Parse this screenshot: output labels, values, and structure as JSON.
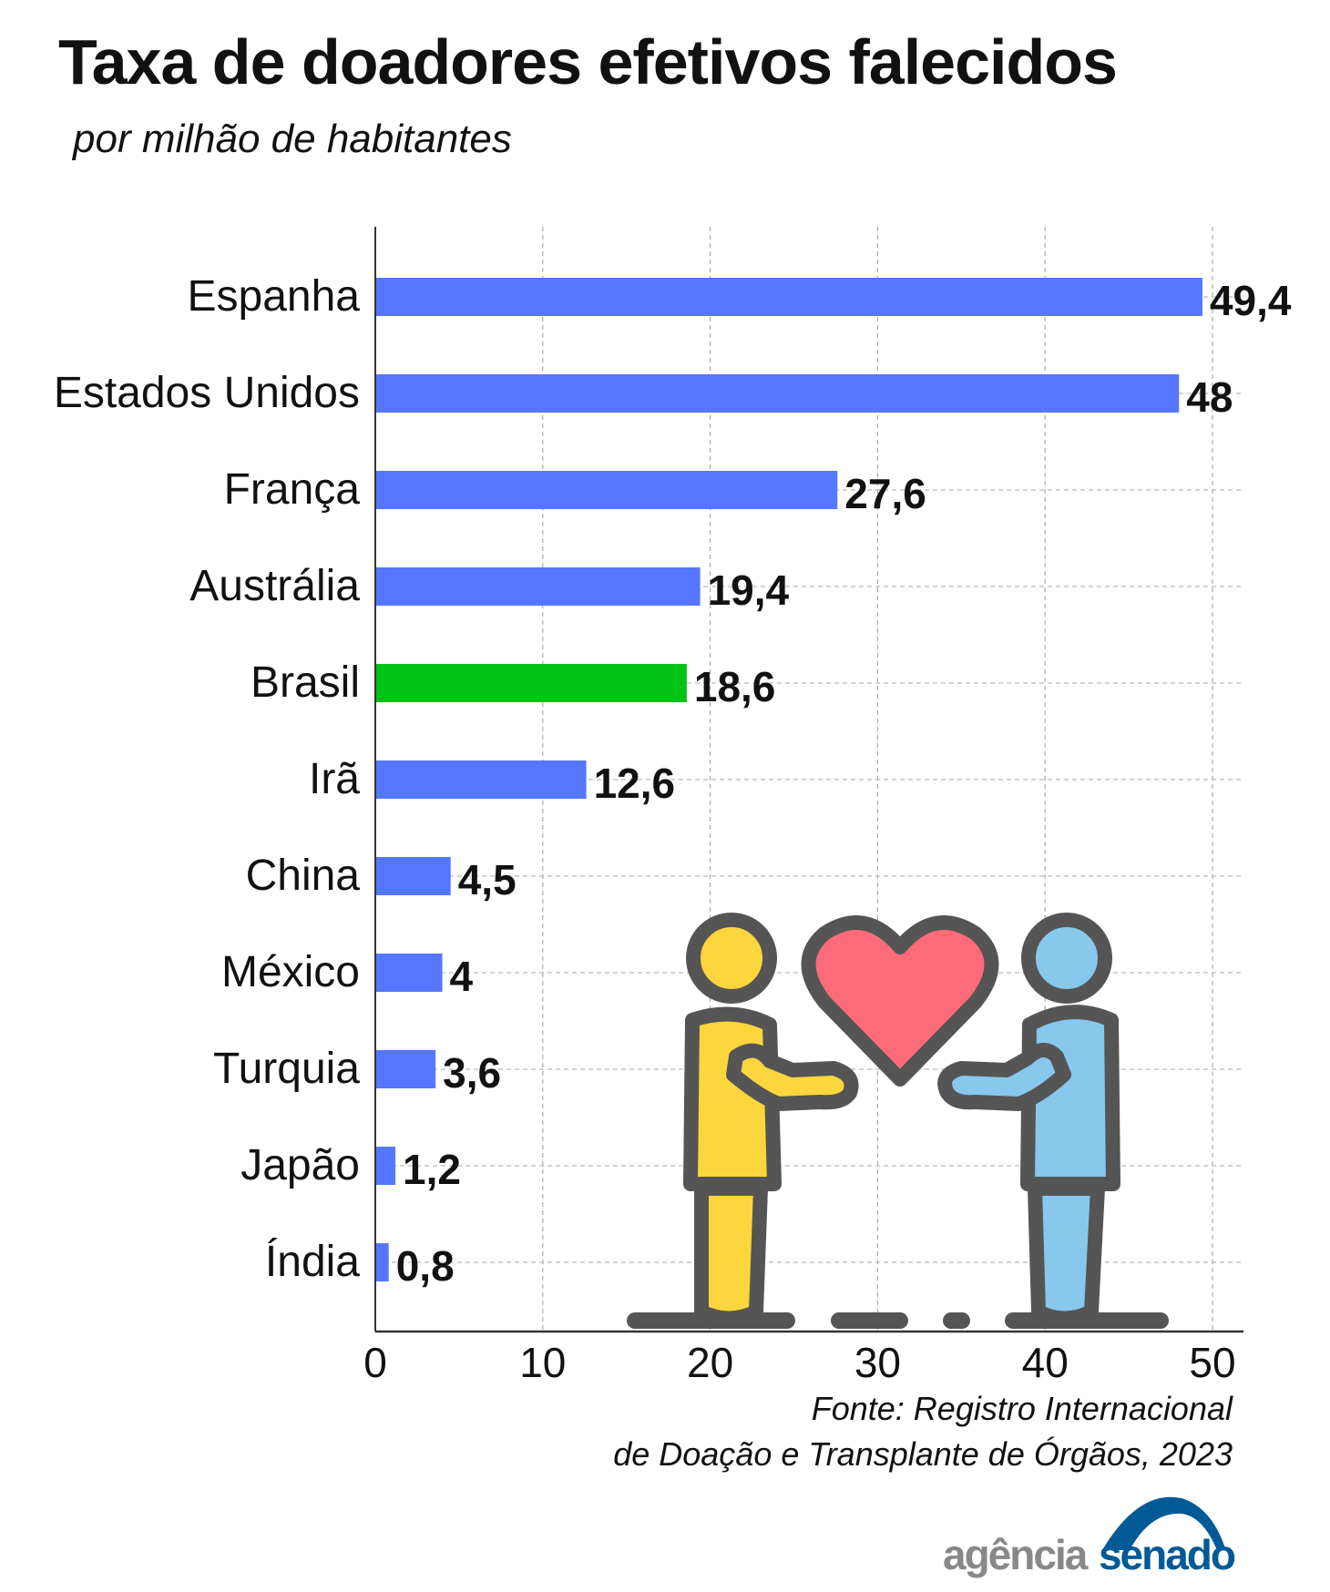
{
  "chart_data": {
    "type": "bar",
    "orientation": "horizontal",
    "title": "Taxa de doadores efetivos falecidos",
    "subtitle": "por milhão de habitantes",
    "categories": [
      "Espanha",
      "Estados Unidos",
      "França",
      "Austrália",
      "Brasil",
      "Irã",
      "China",
      "México",
      "Turquia",
      "Japão",
      "Índia"
    ],
    "values": [
      49.4,
      48,
      27.6,
      19.4,
      18.6,
      12.6,
      4.5,
      4,
      3.6,
      1.2,
      0.8
    ],
    "value_labels": [
      "49,4",
      "48",
      "27,6",
      "19,4",
      "18,6",
      "12,6",
      "4,5",
      "4",
      "3,6",
      "1,2",
      "0,8"
    ],
    "xlim": [
      0,
      52
    ],
    "x_ticks": [
      "0",
      "10",
      "20",
      "30",
      "40",
      "50"
    ],
    "x_tick_values": [
      0,
      10,
      20,
      30,
      40,
      50
    ],
    "grid": true,
    "colors": {
      "default": "#5577ff",
      "highlight": "#00c314",
      "highlight_category": "Brasil"
    },
    "source": [
      "Fonte: Registro Internacional",
      "de Doação e Transplante de Órgãos, 2023"
    ]
  },
  "logo": {
    "part1": "agência",
    "part2": "senado"
  }
}
